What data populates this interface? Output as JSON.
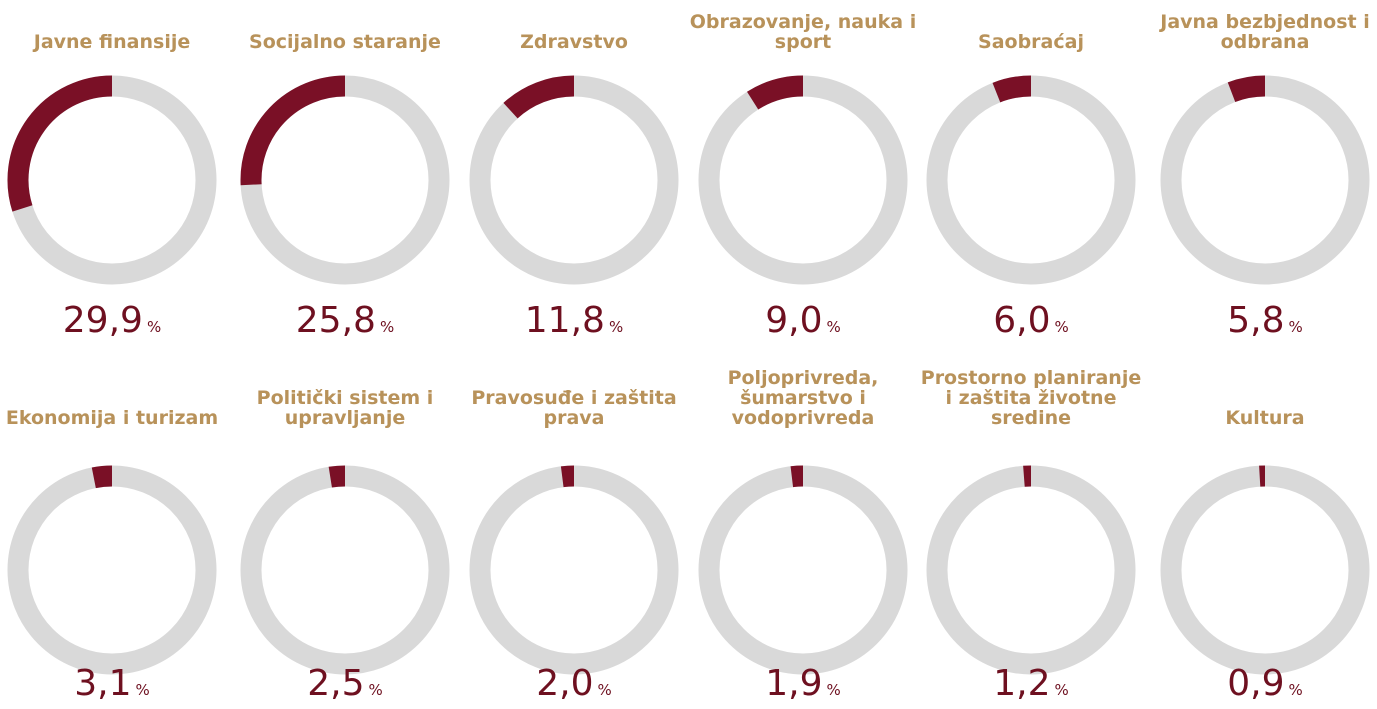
{
  "chart_data": {
    "type": "donut",
    "categories": [
      "Javne finansije",
      "Socijalno staranje",
      "Zdravstvo",
      "Obrazovanje, nauka i sport",
      "Saobraćaj",
      "Javna bezbjednost i odbrana",
      "Ekonomija i turizam",
      "Politički sistem i upravljanje",
      "Pravosuđe i zaštita prava",
      "Poljoprivreda, šumarstvo i vodoprivreda",
      "Prostorno planiranje i zaštita životne sredine",
      "Kultura"
    ],
    "values": [
      29.9,
      25.8,
      11.8,
      9.0,
      6.0,
      5.8,
      3.1,
      2.5,
      2.0,
      1.9,
      1.2,
      0.9
    ],
    "value_labels": [
      "29,9",
      "25,8",
      "11,8",
      "9,0",
      "6,0",
      "5,8",
      "3,1",
      "2,5",
      "2,0",
      "1,9",
      "1,2",
      "0,9"
    ],
    "unit": "%",
    "color": "#7a1026",
    "track_color": "#d9d9d9"
  }
}
